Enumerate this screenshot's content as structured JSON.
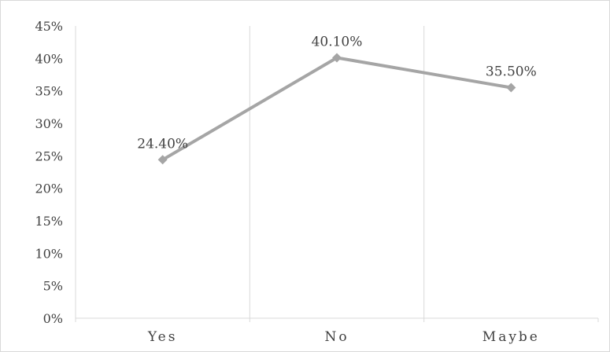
{
  "chart_data": {
    "type": "line",
    "title": "",
    "xlabel": "",
    "ylabel": "",
    "categories": [
      "Yes",
      "No",
      "Maybe"
    ],
    "series": [
      {
        "values": [
          24.4,
          40.1,
          35.5
        ],
        "data_labels": [
          "24.40%",
          "40.10%",
          "35.50%"
        ],
        "color": "#a5a5a5",
        "marker": "diamond"
      }
    ],
    "ylim": [
      0,
      45
    ],
    "y_ticks": [
      0,
      5,
      10,
      15,
      20,
      25,
      30,
      35,
      40,
      45
    ],
    "y_tick_labels": [
      "0%",
      "5%",
      "10%",
      "15%",
      "20%",
      "25%",
      "30%",
      "35%",
      "40%",
      "45%"
    ],
    "grid": "vertical category separators",
    "legend": "none"
  }
}
